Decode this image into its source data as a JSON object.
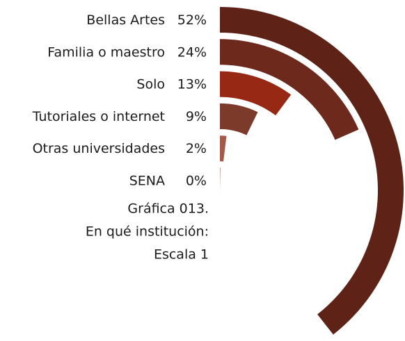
{
  "chart_data": {
    "type": "radial_bar",
    "categories": [
      "Bellas Artes",
      "Familia o maestro",
      "Solo",
      "Tutoriales o internet",
      "Otras universidades",
      "SENA"
    ],
    "values": [
      52,
      24,
      13,
      9,
      2,
      0
    ],
    "value_labels": [
      "52%",
      "24%",
      "13%",
      "9%",
      "2%",
      "0%"
    ],
    "colors": [
      "#5e2216",
      "#6d291b",
      "#972813",
      "#7c3a2b",
      "#a35a49",
      "#b58676"
    ],
    "caption": [
      "Gráfica 013.",
      "En qué institución:",
      "Escala 1"
    ]
  }
}
